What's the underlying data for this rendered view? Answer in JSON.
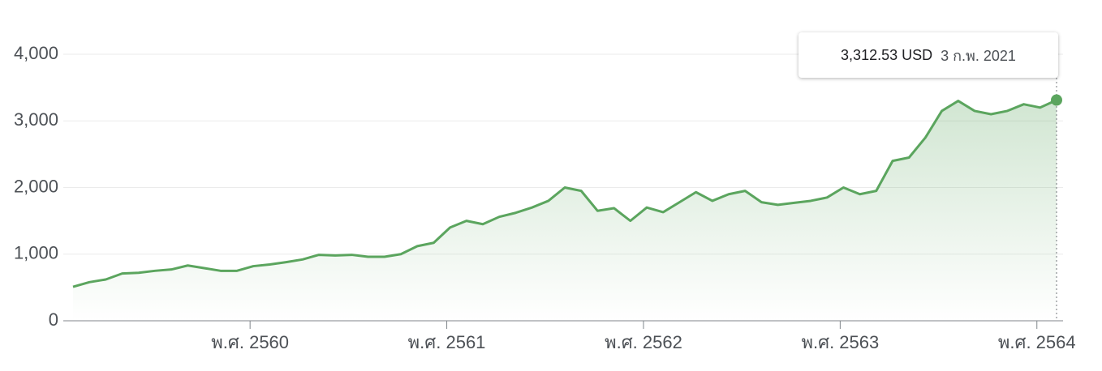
{
  "chart_data": {
    "type": "line",
    "values": [
      510,
      580,
      620,
      710,
      720,
      750,
      770,
      830,
      790,
      750,
      750,
      820,
      845,
      880,
      920,
      990,
      980,
      990,
      960,
      960,
      1000,
      1120,
      1170,
      1400,
      1500,
      1450,
      1560,
      1620,
      1700,
      1800,
      2000,
      1950,
      1650,
      1690,
      1500,
      1700,
      1630,
      1780,
      1930,
      1800,
      1900,
      1950,
      1780,
      1740,
      1770,
      1800,
      1850,
      2000,
      1900,
      1950,
      2400,
      2450,
      2750,
      3150,
      3300,
      3150,
      3100,
      3150,
      3250,
      3200,
      3312.53
    ],
    "color": "#5ba55e",
    "xlim": [
      0,
      60
    ],
    "xticks": [
      {
        "value": 10.8,
        "label": "พ.ศ. 2560"
      },
      {
        "value": 22.8,
        "label": "พ.ศ. 2561"
      },
      {
        "value": 34.8,
        "label": "พ.ศ. 2562"
      },
      {
        "value": 46.8,
        "label": "พ.ศ. 2563"
      },
      {
        "value": 58.8,
        "label": "พ.ศ. 2564"
      }
    ],
    "ylim": [
      0,
      4000
    ],
    "yticks": [
      0,
      {
        "value": 1000,
        "label": "1,000"
      },
      {
        "value": 2000,
        "label": "2,000"
      },
      {
        "value": 3000,
        "label": "3,000"
      },
      {
        "value": 4000,
        "label": "4,000"
      }
    ],
    "grid": true,
    "tooltip": {
      "value_label": "3,312.53 USD",
      "date": "3 ก.พ. 2021"
    }
  }
}
